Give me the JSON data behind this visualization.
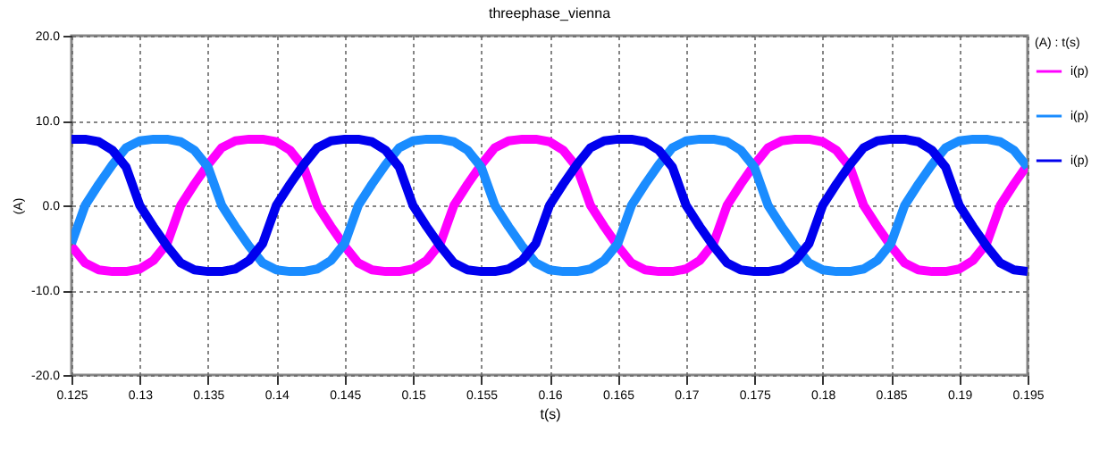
{
  "chart_data": {
    "type": "line",
    "title": "threephase_vienna",
    "xlabel": "t(s)",
    "ylabel": "(A)",
    "legend_title": "(A) : t(s)",
    "legend": "top right",
    "grid": true,
    "marker": "none",
    "line_style": "solid",
    "x": [
      0.125,
      0.126,
      0.127,
      0.128,
      0.129,
      0.13,
      0.131,
      0.132,
      0.133,
      0.134,
      0.135,
      0.136,
      0.137,
      0.138,
      0.139,
      0.14,
      0.141,
      0.142,
      0.143,
      0.144,
      0.145,
      0.146,
      0.147,
      0.148,
      0.149,
      0.15,
      0.151,
      0.152,
      0.153,
      0.154,
      0.155,
      0.156,
      0.157,
      0.158,
      0.159,
      0.16,
      0.161,
      0.162,
      0.163,
      0.164,
      0.165,
      0.166,
      0.167,
      0.168,
      0.169,
      0.17,
      0.171,
      0.172,
      0.173,
      0.174,
      0.175,
      0.176,
      0.177,
      0.178,
      0.179,
      0.18,
      0.181,
      0.182,
      0.183,
      0.184,
      0.185,
      0.186,
      0.187,
      0.188,
      0.189,
      0.19,
      0.191,
      0.192,
      0.193,
      0.194,
      0.195
    ],
    "xlim": [
      0.125,
      0.195
    ],
    "xticks": [
      0.125,
      0.13,
      0.135,
      0.14,
      0.145,
      0.15,
      0.155,
      0.16,
      0.165,
      0.17,
      0.175,
      0.18,
      0.185,
      0.19,
      0.195
    ],
    "ylim": [
      -20,
      20
    ],
    "yticks": [
      {
        "value": -20,
        "label": "-20.0"
      },
      {
        "value": -10,
        "label": "-10.0"
      },
      {
        "value": 0,
        "label": "0.0"
      },
      {
        "value": 10,
        "label": "10.0"
      },
      {
        "value": 20,
        "label": "20.0"
      }
    ],
    "series": [
      {
        "name": "i(p)",
        "color": "#ff00ff",
        "values": [
          -4.8,
          -6.8,
          -7.6,
          -7.8,
          -7.8,
          -7.5,
          -6.5,
          -4.5,
          0,
          2.5,
          4.8,
          6.8,
          7.6,
          7.8,
          7.8,
          7.5,
          6.5,
          4.5,
          0,
          -2.5,
          -4.8,
          -6.8,
          -7.6,
          -7.8,
          -7.8,
          -7.5,
          -6.5,
          -4.5,
          0,
          2.5,
          4.8,
          6.8,
          7.6,
          7.8,
          7.8,
          7.5,
          6.5,
          4.5,
          0,
          -2.5,
          -4.8,
          -6.8,
          -7.6,
          -7.8,
          -7.8,
          -7.5,
          -6.5,
          -4.5,
          0,
          2.5,
          4.8,
          6.8,
          7.6,
          7.8,
          7.8,
          7.5,
          6.5,
          4.5,
          0,
          -2.5,
          -4.8,
          -6.8,
          -7.6,
          -7.8,
          -7.8,
          -7.5,
          -6.5,
          -4.5,
          0,
          2.5,
          4.8
        ]
      },
      {
        "name": "i(p)",
        "color": "#1a8cff",
        "values": [
          -4.5,
          0,
          2.5,
          4.8,
          6.8,
          7.6,
          7.8,
          7.8,
          7.5,
          6.5,
          4.5,
          0,
          -2.5,
          -4.8,
          -6.8,
          -7.6,
          -7.8,
          -7.8,
          -7.5,
          -6.5,
          -4.5,
          0,
          2.5,
          4.8,
          6.8,
          7.6,
          7.8,
          7.8,
          7.5,
          6.5,
          4.5,
          0,
          -2.5,
          -4.8,
          -6.8,
          -7.6,
          -7.8,
          -7.8,
          -7.5,
          -6.5,
          -4.5,
          0,
          2.5,
          4.8,
          6.8,
          7.6,
          7.8,
          7.8,
          7.5,
          6.5,
          4.5,
          0,
          -2.5,
          -4.8,
          -6.8,
          -7.6,
          -7.8,
          -7.8,
          -7.5,
          -6.5,
          -4.5,
          0,
          2.5,
          4.8,
          6.8,
          7.6,
          7.8,
          7.8,
          7.5,
          6.5,
          4.5
        ]
      },
      {
        "name": "i(p)",
        "color": "#0000ee",
        "values": [
          7.8,
          7.8,
          7.5,
          6.5,
          4.5,
          0,
          -2.5,
          -4.8,
          -6.8,
          -7.6,
          -7.8,
          -7.8,
          -7.5,
          -6.5,
          -4.5,
          0,
          2.5,
          4.8,
          6.8,
          7.6,
          7.8,
          7.8,
          7.5,
          6.5,
          4.5,
          0,
          -2.5,
          -4.8,
          -6.8,
          -7.6,
          -7.8,
          -7.8,
          -7.5,
          -6.5,
          -4.5,
          0,
          2.5,
          4.8,
          6.8,
          7.6,
          7.8,
          7.8,
          7.5,
          6.5,
          4.5,
          0,
          -2.5,
          -4.8,
          -6.8,
          -7.6,
          -7.8,
          -7.8,
          -7.5,
          -6.5,
          -4.5,
          0,
          2.5,
          4.8,
          6.8,
          7.6,
          7.8,
          7.8,
          7.5,
          6.5,
          4.5,
          0,
          -2.5,
          -4.8,
          -6.8,
          -7.6,
          -7.8
        ]
      }
    ]
  }
}
